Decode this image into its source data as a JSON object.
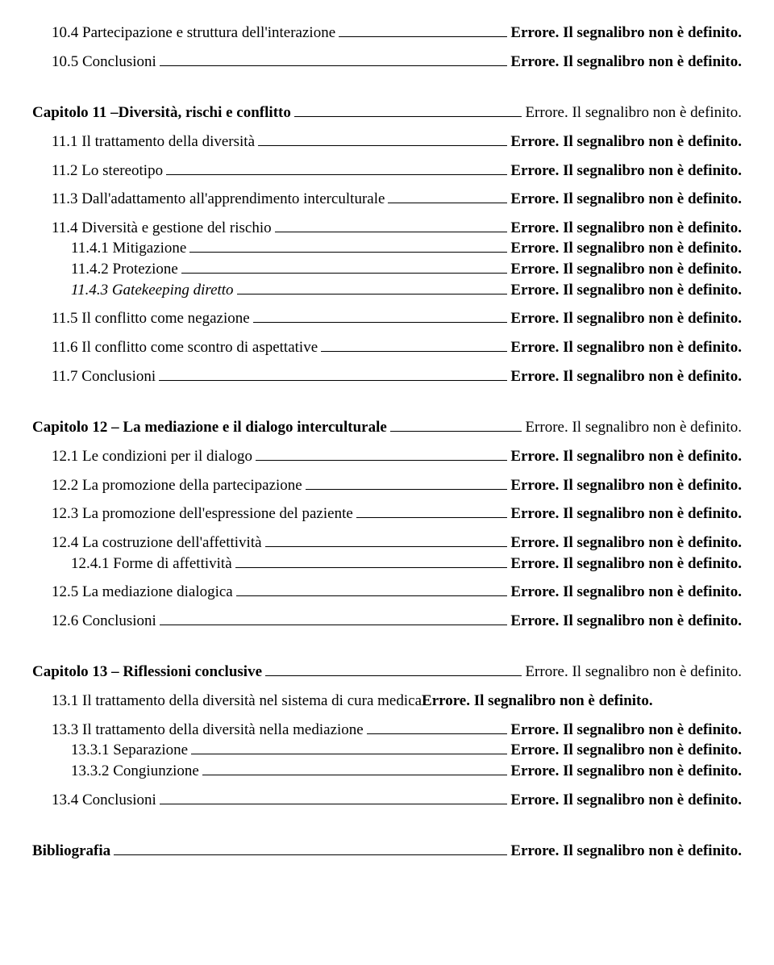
{
  "err": "Errore. Il segnalibro non è definito.",
  "entries": [
    {
      "label": "10.4 Partecipazione e struttura dell'interazione",
      "indent": 1,
      "labelBold": false,
      "pageBold": true,
      "gap": ""
    },
    {
      "label": "10.5 Conclusioni",
      "indent": 1,
      "labelBold": false,
      "pageBold": true,
      "gap": "group"
    },
    {
      "label": "Capitolo 11 –Diversità, rischi e conflitto",
      "indent": 0,
      "labelBold": true,
      "pageBold": false,
      "gap": "section"
    },
    {
      "label": "11.1 Il trattamento della diversità",
      "indent": 1,
      "labelBold": false,
      "pageBold": true,
      "gap": "group"
    },
    {
      "label": "11.2 Lo stereotipo",
      "indent": 1,
      "labelBold": false,
      "pageBold": true,
      "gap": "group"
    },
    {
      "label": "11.3 Dall'adattamento all'apprendimento interculturale",
      "indent": 1,
      "labelBold": false,
      "pageBold": true,
      "gap": "group"
    },
    {
      "label": "11.4 Diversità e gestione del rischio",
      "indent": 1,
      "labelBold": false,
      "pageBold": true,
      "gap": "group"
    },
    {
      "label": "11.4.1 Mitigazione",
      "indent": 2,
      "labelBold": false,
      "pageBold": true,
      "gap": ""
    },
    {
      "label": "11.4.2 Protezione",
      "indent": 2,
      "labelBold": false,
      "pageBold": true,
      "gap": ""
    },
    {
      "label": "11.4.3 Gatekeeping diretto",
      "indent": 2,
      "labelBold": false,
      "labelItalic": true,
      "pageBold": true,
      "gap": ""
    },
    {
      "label": "11.5 Il conflitto come negazione",
      "indent": 1,
      "labelBold": false,
      "pageBold": true,
      "gap": "group"
    },
    {
      "label": "11.6 Il conflitto come scontro di aspettative",
      "indent": 1,
      "labelBold": false,
      "pageBold": true,
      "gap": "group"
    },
    {
      "label": "11.7 Conclusioni",
      "indent": 1,
      "labelBold": false,
      "pageBold": true,
      "gap": "group"
    },
    {
      "label": "Capitolo 12 – La mediazione e il dialogo interculturale",
      "indent": 0,
      "labelBold": true,
      "pageBold": false,
      "gap": "section"
    },
    {
      "label": "12.1 Le condizioni per il dialogo",
      "indent": 1,
      "labelBold": false,
      "pageBold": true,
      "gap": "group"
    },
    {
      "label": "12.2 La promozione della partecipazione",
      "indent": 1,
      "labelBold": false,
      "pageBold": true,
      "gap": "group"
    },
    {
      "label": "12.3 La promozione dell'espressione del paziente",
      "indent": 1,
      "labelBold": false,
      "pageBold": true,
      "gap": "group"
    },
    {
      "label": "12.4 La costruzione dell'affettività",
      "indent": 1,
      "labelBold": false,
      "pageBold": true,
      "gap": "group"
    },
    {
      "label": "12.4.1 Forme di affettività",
      "indent": 2,
      "labelBold": false,
      "pageBold": true,
      "gap": ""
    },
    {
      "label": "12.5 La mediazione dialogica",
      "indent": 1,
      "labelBold": false,
      "pageBold": true,
      "gap": "group"
    },
    {
      "label": "12.6 Conclusioni",
      "indent": 1,
      "labelBold": false,
      "pageBold": true,
      "gap": "group"
    },
    {
      "label": "Capitolo 13 – Riflessioni conclusive",
      "indent": 0,
      "labelBold": true,
      "pageBold": false,
      "gap": "section"
    },
    {
      "label": "13.1 Il trattamento della diversità nel sistema di cura medica",
      "indent": 1,
      "labelBold": false,
      "pageBold": true,
      "gap": "group",
      "wrap": true,
      "pageText": "Errore. Il segnalibro non è definito."
    },
    {
      "label": "13.3 Il trattamento della diversità nella mediazione",
      "indent": 1,
      "labelBold": false,
      "pageBold": true,
      "gap": "group"
    },
    {
      "label": "13.3.1 Separazione",
      "indent": 2,
      "labelBold": false,
      "pageBold": true,
      "gap": ""
    },
    {
      "label": "13.3.2 Congiunzione",
      "indent": 2,
      "labelBold": false,
      "pageBold": true,
      "gap": ""
    },
    {
      "label": "13.4 Conclusioni",
      "indent": 1,
      "labelBold": false,
      "pageBold": true,
      "gap": "group"
    },
    {
      "label": "Bibliografia",
      "indent": 0,
      "labelBold": true,
      "pageBold": true,
      "gap": "section"
    }
  ]
}
